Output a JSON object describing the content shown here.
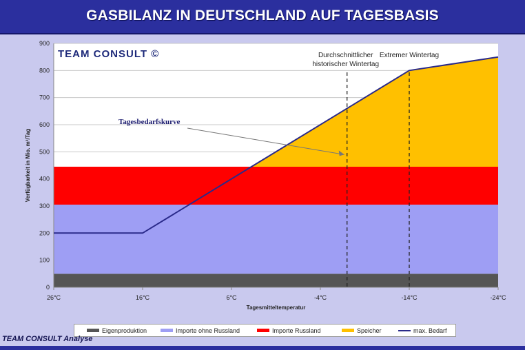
{
  "header": {
    "title": "GASBILANZ IN DEUTSCHLAND AUF TAGESBASIS"
  },
  "chart_data": {
    "type": "area",
    "title": "GASBILANZ IN DEUTSCHLAND AUF TAGESBASIS",
    "xlabel": "Tagesmitteltemperatur",
    "ylabel": "Verfügbarkeit in Mio. m³/Tag",
    "x_ticks": [
      "26°C",
      "16°C",
      "6°C",
      "-4°C",
      "-14°C",
      "-24°C"
    ],
    "x_tick_values": [
      26,
      16,
      6,
      -4,
      -14,
      -24
    ],
    "xlim": [
      26,
      -24
    ],
    "ylim": [
      0,
      900
    ],
    "y_ticks": [
      0,
      100,
      200,
      300,
      400,
      500,
      600,
      700,
      800,
      900
    ],
    "grid": true,
    "legend_position": "bottom",
    "stacked_bands": [
      {
        "name": "Eigenproduktion",
        "from": 0,
        "to": 50,
        "color": "#555555"
      },
      {
        "name": "Importe ohne Russland",
        "from": 50,
        "to": 305,
        "color": "#9e9ef4"
      },
      {
        "name": "Importe Russland",
        "from": 305,
        "to": 445,
        "color": "#ff0000"
      },
      {
        "name": "Speicher",
        "from": 445,
        "to": 850,
        "color": "#ffc000",
        "note_shape": "filled only under max. Bedarf curve"
      }
    ],
    "series": [
      {
        "name": "max. Bedarf",
        "color": "#2a2a8a",
        "x": [
          26,
          16,
          -14,
          -24
        ],
        "y": [
          200,
          200,
          800,
          850
        ]
      }
    ],
    "reference_lines": [
      {
        "x": -7,
        "label_lines": [
          "Durchschnittlicher",
          "historischer Wintertag"
        ]
      },
      {
        "x": -14,
        "label_lines": [
          "Extremer Wintertag"
        ]
      }
    ],
    "annotations": [
      {
        "text": "Tagesbedarfskurve",
        "arrow_to": {
          "x": -7,
          "y": 510
        }
      }
    ],
    "watermark": "TEAM CONSULT ©"
  },
  "legend": {
    "items": [
      {
        "label": "Eigenproduktion",
        "color": "#555555",
        "kind": "swatch"
      },
      {
        "label": "Importe ohne Russland",
        "color": "#9e9ef4",
        "kind": "swatch"
      },
      {
        "label": "Importe Russland",
        "color": "#ff0000",
        "kind": "swatch"
      },
      {
        "label": "Speicher",
        "color": "#ffc000",
        "kind": "swatch"
      },
      {
        "label": "max. Bedarf",
        "color": "#2a2a8a",
        "kind": "line"
      }
    ]
  },
  "footer": {
    "brand": "TEAM CONSULT",
    "suffix": "Analyse"
  }
}
